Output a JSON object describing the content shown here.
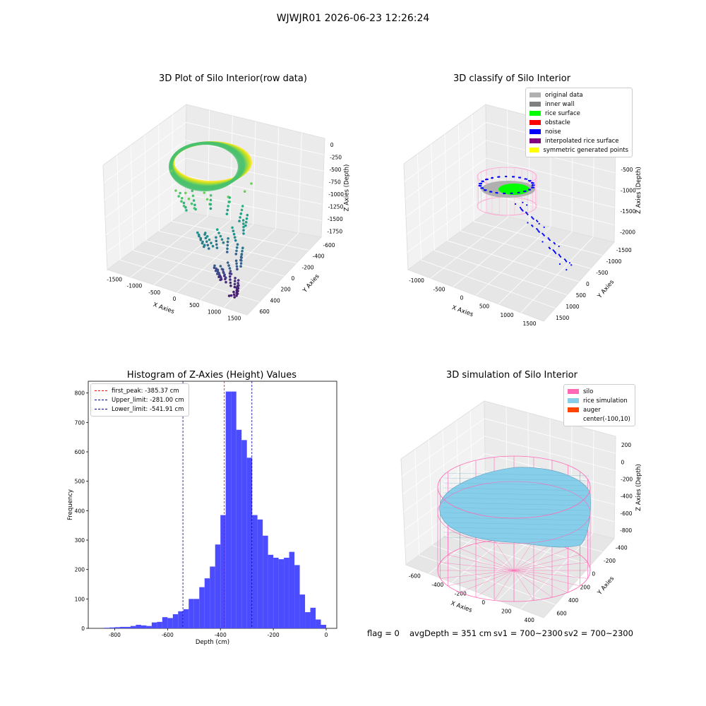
{
  "suptitle": "WJWJR01 2026-06-23 12:26:24",
  "chart_data": [
    {
      "type": "scatter",
      "title": "3D Plot of Silo Interior(row data)",
      "xlabel": "X Axies",
      "ylabel": "Y Axies",
      "zlabel": "Z Axies (Depth)",
      "xticks": [
        "-1500",
        "-1000",
        "-500",
        "0",
        "500",
        "1000",
        "1500"
      ],
      "yticks": [
        "600",
        "400",
        "200",
        "0",
        "-200",
        "-400",
        "-600"
      ],
      "zticks": [
        "0",
        "-250",
        "-500",
        "-750",
        "-1000",
        "-1250",
        "-1500",
        "-1750"
      ],
      "colormap": "viridis"
    },
    {
      "type": "scatter",
      "title": "3D classify of Silo Interior",
      "xlabel": "X Axies",
      "ylabel": "Y Axies",
      "zlabel": "Z Axies (Depth)",
      "xticks": [
        "-1000",
        "-500",
        "0",
        "500",
        "1000",
        "1500"
      ],
      "yticks": [
        "1500",
        "1000",
        "500",
        "0",
        "-500",
        "-1000",
        "-1500"
      ],
      "zticks": [
        "0",
        "-500",
        "-1000",
        "-1500",
        "-2000"
      ],
      "legend": [
        {
          "label": "original data",
          "color": "#b0b0b0"
        },
        {
          "label": "inner wall",
          "color": "#808080"
        },
        {
          "label": "rice surface",
          "color": "#00ff00"
        },
        {
          "label": "obstacle",
          "color": "#ff0000"
        },
        {
          "label": "noise",
          "color": "#0000ff"
        },
        {
          "label": "interpolated rice surface",
          "color": "#800080"
        },
        {
          "label": "symmetric generated points",
          "color": "#ffff00"
        }
      ]
    },
    {
      "type": "bar",
      "title": "Histogram of Z-Axies (Height) Values",
      "xlabel": "Depth (cm)",
      "ylabel": "Frequency",
      "xlim": [
        -900,
        40
      ],
      "ylim": [
        0,
        840
      ],
      "xticks": [
        -800,
        -600,
        -400,
        -200,
        0
      ],
      "yticks": [
        0,
        100,
        200,
        300,
        400,
        500,
        600,
        700,
        800
      ],
      "bin_width": 20,
      "bins": [
        {
          "x0": -840,
          "value": 2
        },
        {
          "x0": -820,
          "value": 3
        },
        {
          "x0": -800,
          "value": 4
        },
        {
          "x0": -780,
          "value": 5
        },
        {
          "x0": -760,
          "value": 5
        },
        {
          "x0": -740,
          "value": 8
        },
        {
          "x0": -720,
          "value": 12
        },
        {
          "x0": -700,
          "value": 10
        },
        {
          "x0": -680,
          "value": 8
        },
        {
          "x0": -660,
          "value": 20
        },
        {
          "x0": -640,
          "value": 22
        },
        {
          "x0": -620,
          "value": 38
        },
        {
          "x0": -600,
          "value": 35
        },
        {
          "x0": -580,
          "value": 48
        },
        {
          "x0": -560,
          "value": 58
        },
        {
          "x0": -540,
          "value": 65
        },
        {
          "x0": -520,
          "value": 100
        },
        {
          "x0": -500,
          "value": 100
        },
        {
          "x0": -480,
          "value": 140
        },
        {
          "x0": -460,
          "value": 170
        },
        {
          "x0": -440,
          "value": 210
        },
        {
          "x0": -420,
          "value": 285
        },
        {
          "x0": -400,
          "value": 385
        },
        {
          "x0": -380,
          "value": 805
        },
        {
          "x0": -360,
          "value": 805
        },
        {
          "x0": -340,
          "value": 675
        },
        {
          "x0": -320,
          "value": 640
        },
        {
          "x0": -300,
          "value": 580
        },
        {
          "x0": -280,
          "value": 385
        },
        {
          "x0": -260,
          "value": 370
        },
        {
          "x0": -240,
          "value": 315
        },
        {
          "x0": -220,
          "value": 250
        },
        {
          "x0": -200,
          "value": 240
        },
        {
          "x0": -180,
          "value": 235
        },
        {
          "x0": -160,
          "value": 240
        },
        {
          "x0": -140,
          "value": 260
        },
        {
          "x0": -120,
          "value": 215
        },
        {
          "x0": -100,
          "value": 115
        },
        {
          "x0": -80,
          "value": 55
        },
        {
          "x0": -60,
          "value": 70
        },
        {
          "x0": -40,
          "value": 30
        },
        {
          "x0": -20,
          "value": 12
        }
      ],
      "lines": [
        {
          "label": "first_peak: -385.37 cm",
          "x": -385.37,
          "color": "#ff0000"
        },
        {
          "label": "Upper_limit: -281.00 cm",
          "x": -281.0,
          "color": "#00008b"
        },
        {
          "label": "Lower_limit: -541.91 cm",
          "x": -541.91,
          "color": "#00008b"
        }
      ],
      "bar_color": "#4b4bff"
    },
    {
      "type": "surface",
      "title": "3D simulation of Silo Interior",
      "xlabel": "X Axies",
      "ylabel": "Y Axies",
      "zlabel": "Z Axies (Depth)",
      "xticks": [
        "-600",
        "-400",
        "-200",
        "0",
        "200",
        "400"
      ],
      "yticks": [
        "600",
        "400",
        "200",
        "0",
        "-200",
        "-400"
      ],
      "zticks": [
        "200",
        "0",
        "-200",
        "-400",
        "-600",
        "-800"
      ],
      "legend": [
        {
          "label": "silo",
          "color": "#ff69b4"
        },
        {
          "label": "rice simulation",
          "color": "#87ceeb"
        },
        {
          "label": "auger",
          "color": "#ff4500"
        },
        {
          "label": "center(-100,10)",
          "color": ""
        }
      ]
    }
  ],
  "footer": {
    "flag": "flag = 0",
    "avg": "avgDepth = 351 cm",
    "sv1": "sv1 = 700~2300",
    "sv2": "sv2 = 700~2300"
  }
}
